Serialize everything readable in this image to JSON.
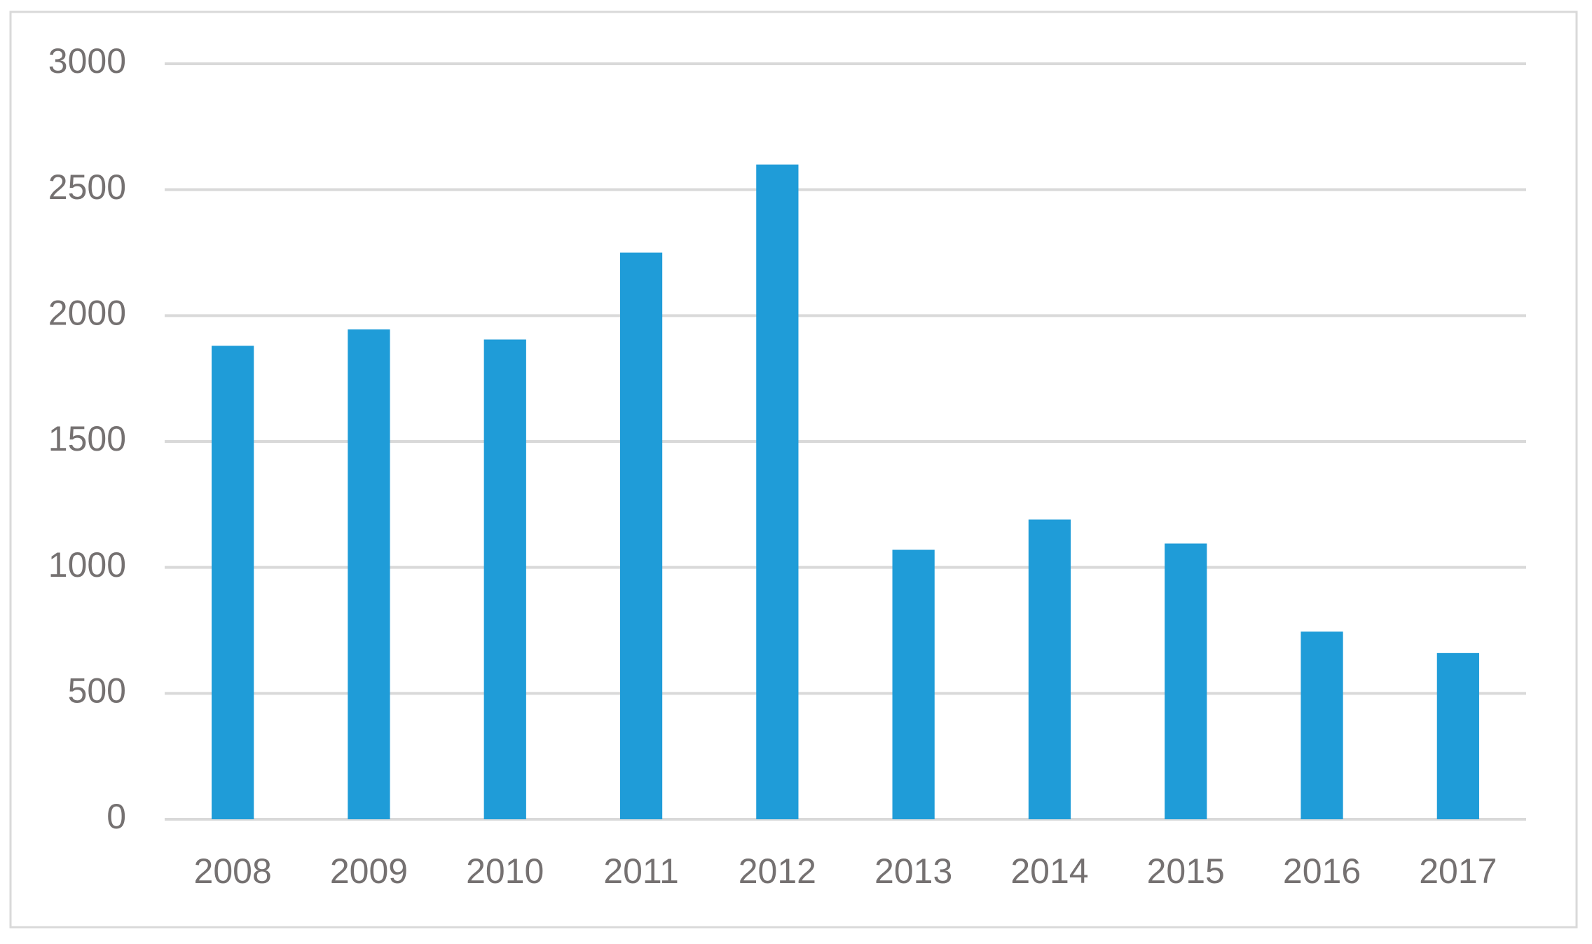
{
  "chart_data": {
    "type": "bar",
    "categories": [
      "2008",
      "2009",
      "2010",
      "2011",
      "2012",
      "2013",
      "2014",
      "2015",
      "2016",
      "2017"
    ],
    "values": [
      1880,
      1945,
      1905,
      2250,
      2600,
      1070,
      1190,
      1095,
      745,
      660
    ],
    "color": "#1f9cd8",
    "ylim": [
      0,
      3000
    ],
    "yticks": [
      0,
      500,
      1000,
      1500,
      2000,
      2500,
      3000
    ],
    "grid": true
  }
}
